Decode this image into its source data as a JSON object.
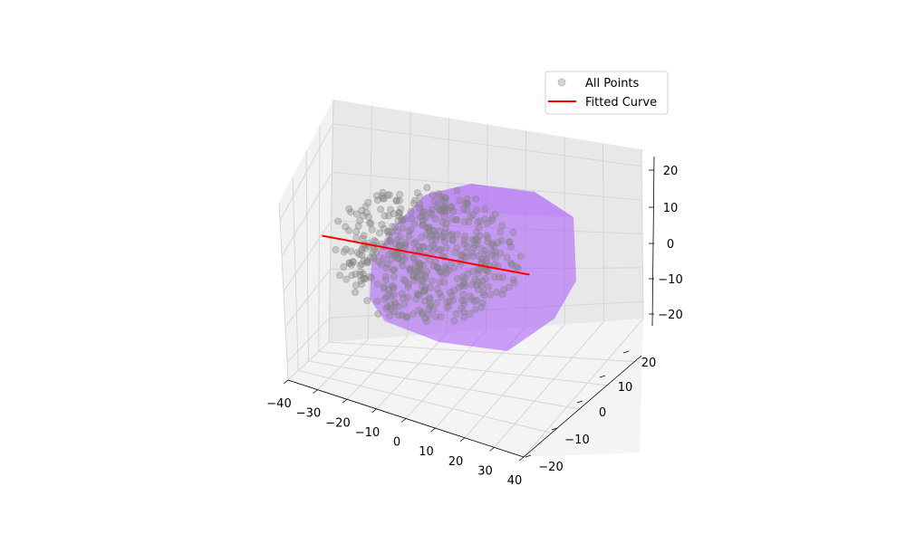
{
  "chart_data": {
    "type": "scatter",
    "title": "",
    "xlabel": "",
    "ylabel": "",
    "zlabel": "",
    "grid": true,
    "legend_placement": "upper-right",
    "x_range": [
      -40,
      40
    ],
    "y_range": [
      -25,
      25
    ],
    "z_range": [
      -25,
      25
    ],
    "x_ticks": [
      "−40",
      "−30",
      "−20",
      "−10",
      "0",
      "10",
      "20",
      "30",
      "40"
    ],
    "y_ticks": [
      "−20",
      "−10",
      "0",
      "10",
      "20"
    ],
    "z_ticks": [
      "−20",
      "−10",
      "0",
      "10",
      "20"
    ],
    "series": [
      {
        "name": "All Points",
        "kind": "scatter",
        "color": "#808080",
        "opacity": 0.35,
        "count": 500
      },
      {
        "name": "Fitted Curve",
        "kind": "line",
        "color": "#ff0000",
        "points": [
          [
            -30,
            -5,
            0
          ],
          [
            -20,
            -3.3,
            0
          ],
          [
            -10,
            -1.7,
            0
          ],
          [
            0,
            0,
            0
          ],
          [
            10,
            1.7,
            0
          ],
          [
            20,
            3.3,
            0
          ],
          [
            30,
            5,
            0
          ]
        ]
      }
    ],
    "surface": {
      "label": "",
      "color": "#a855f7",
      "opacity": 0.55
    }
  }
}
